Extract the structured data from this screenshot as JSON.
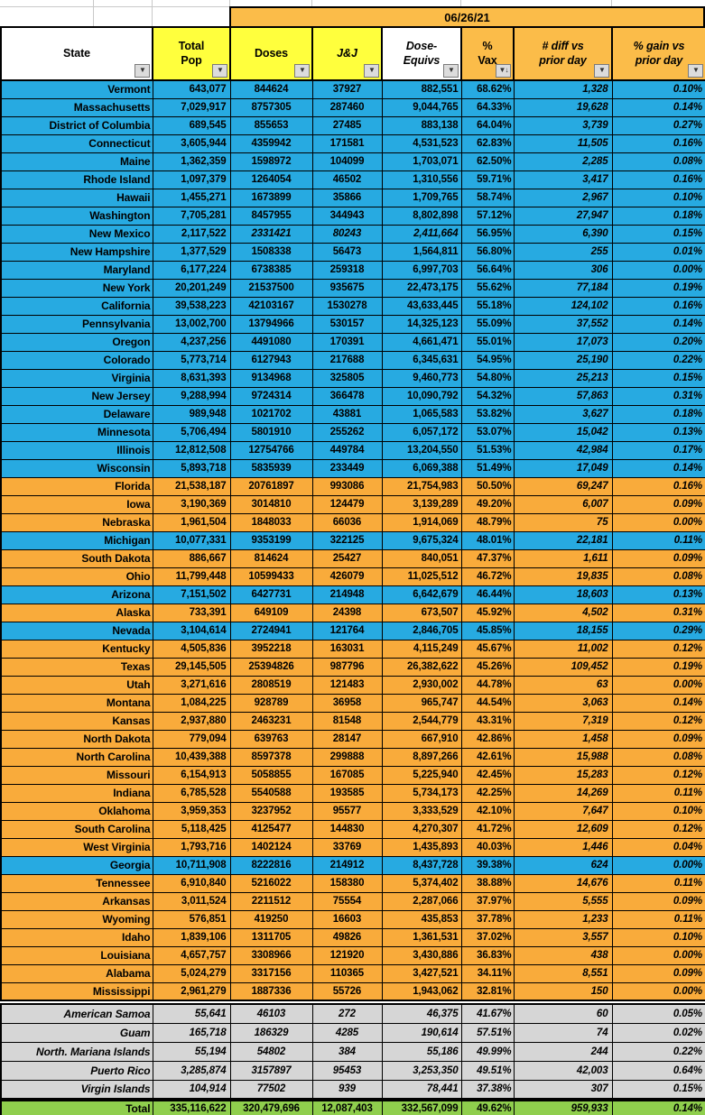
{
  "meta": {
    "date": "06/26/21"
  },
  "palette": {
    "row_blue": "#27AAE1",
    "row_orange": "#F9AB3B",
    "header_orange": "#FBBC49",
    "header_yellow": "#FFFF3D",
    "territory_gray": "#D6D6D6",
    "total_green": "#8FCE4D"
  },
  "icons": {
    "filter": "▼",
    "filter_sorted_desc": "▼↓"
  },
  "columns": [
    {
      "label": "State"
    },
    {
      "label": "Total Pop"
    },
    {
      "label": "Doses"
    },
    {
      "label": "J&J"
    },
    {
      "label": "Dose-Equivs"
    },
    {
      "label": "% Vax"
    },
    {
      "label": "# diff vs prior day"
    },
    {
      "label": "% gain vs prior day"
    }
  ],
  "states": [
    [
      "Vermont",
      "643,077",
      "844624",
      "37927",
      "882,551",
      "68.62%",
      "1,328",
      "0.10%",
      "blue"
    ],
    [
      "Massachusetts",
      "7,029,917",
      "8757305",
      "287460",
      "9,044,765",
      "64.33%",
      "19,628",
      "0.14%",
      "blue"
    ],
    [
      "District of Columbia",
      "689,545",
      "855653",
      "27485",
      "883,138",
      "64.04%",
      "3,739",
      "0.27%",
      "blue"
    ],
    [
      "Connecticut",
      "3,605,944",
      "4359942",
      "171581",
      "4,531,523",
      "62.83%",
      "11,505",
      "0.16%",
      "blue"
    ],
    [
      "Maine",
      "1,362,359",
      "1598972",
      "104099",
      "1,703,071",
      "62.50%",
      "2,285",
      "0.08%",
      "blue"
    ],
    [
      "Rhode Island",
      "1,097,379",
      "1264054",
      "46502",
      "1,310,556",
      "59.71%",
      "3,417",
      "0.16%",
      "blue"
    ],
    [
      "Hawaii",
      "1,455,271",
      "1673899",
      "35866",
      "1,709,765",
      "58.74%",
      "2,967",
      "0.10%",
      "blue"
    ],
    [
      "Washington",
      "7,705,281",
      "8457955",
      "344943",
      "8,802,898",
      "57.12%",
      "27,947",
      "0.18%",
      "blue"
    ],
    [
      "New Mexico",
      "2,117,522",
      "2331421",
      "80243",
      "2,411,664",
      "56.95%",
      "6,390",
      "0.15%",
      "blue",
      "est"
    ],
    [
      "New Hampshire",
      "1,377,529",
      "1508338",
      "56473",
      "1,564,811",
      "56.80%",
      "255",
      "0.01%",
      "blue"
    ],
    [
      "Maryland",
      "6,177,224",
      "6738385",
      "259318",
      "6,997,703",
      "56.64%",
      "306",
      "0.00%",
      "blue"
    ],
    [
      "New York",
      "20,201,249",
      "21537500",
      "935675",
      "22,473,175",
      "55.62%",
      "77,184",
      "0.19%",
      "blue"
    ],
    [
      "California",
      "39,538,223",
      "42103167",
      "1530278",
      "43,633,445",
      "55.18%",
      "124,102",
      "0.16%",
      "blue"
    ],
    [
      "Pennsylvania",
      "13,002,700",
      "13794966",
      "530157",
      "14,325,123",
      "55.09%",
      "37,552",
      "0.14%",
      "blue"
    ],
    [
      "Oregon",
      "4,237,256",
      "4491080",
      "170391",
      "4,661,471",
      "55.01%",
      "17,073",
      "0.20%",
      "blue"
    ],
    [
      "Colorado",
      "5,773,714",
      "6127943",
      "217688",
      "6,345,631",
      "54.95%",
      "25,190",
      "0.22%",
      "blue"
    ],
    [
      "Virginia",
      "8,631,393",
      "9134968",
      "325805",
      "9,460,773",
      "54.80%",
      "25,213",
      "0.15%",
      "blue"
    ],
    [
      "New Jersey",
      "9,288,994",
      "9724314",
      "366478",
      "10,090,792",
      "54.32%",
      "57,863",
      "0.31%",
      "blue"
    ],
    [
      "Delaware",
      "989,948",
      "1021702",
      "43881",
      "1,065,583",
      "53.82%",
      "3,627",
      "0.18%",
      "blue"
    ],
    [
      "Minnesota",
      "5,706,494",
      "5801910",
      "255262",
      "6,057,172",
      "53.07%",
      "15,042",
      "0.13%",
      "blue"
    ],
    [
      "Illinois",
      "12,812,508",
      "12754766",
      "449784",
      "13,204,550",
      "51.53%",
      "42,984",
      "0.17%",
      "blue"
    ],
    [
      "Wisconsin",
      "5,893,718",
      "5835939",
      "233449",
      "6,069,388",
      "51.49%",
      "17,049",
      "0.14%",
      "blue"
    ],
    [
      "Florida",
      "21,538,187",
      "20761897",
      "993086",
      "21,754,983",
      "50.50%",
      "69,247",
      "0.16%",
      "orange"
    ],
    [
      "Iowa",
      "3,190,369",
      "3014810",
      "124479",
      "3,139,289",
      "49.20%",
      "6,007",
      "0.09%",
      "orange"
    ],
    [
      "Nebraska",
      "1,961,504",
      "1848033",
      "66036",
      "1,914,069",
      "48.79%",
      "75",
      "0.00%",
      "orange"
    ],
    [
      "Michigan",
      "10,077,331",
      "9353199",
      "322125",
      "9,675,324",
      "48.01%",
      "22,181",
      "0.11%",
      "blue"
    ],
    [
      "South Dakota",
      "886,667",
      "814624",
      "25427",
      "840,051",
      "47.37%",
      "1,611",
      "0.09%",
      "orange"
    ],
    [
      "Ohio",
      "11,799,448",
      "10599433",
      "426079",
      "11,025,512",
      "46.72%",
      "19,835",
      "0.08%",
      "orange"
    ],
    [
      "Arizona",
      "7,151,502",
      "6427731",
      "214948",
      "6,642,679",
      "46.44%",
      "18,603",
      "0.13%",
      "blue"
    ],
    [
      "Alaska",
      "733,391",
      "649109",
      "24398",
      "673,507",
      "45.92%",
      "4,502",
      "0.31%",
      "orange"
    ],
    [
      "Nevada",
      "3,104,614",
      "2724941",
      "121764",
      "2,846,705",
      "45.85%",
      "18,155",
      "0.29%",
      "blue"
    ],
    [
      "Kentucky",
      "4,505,836",
      "3952218",
      "163031",
      "4,115,249",
      "45.67%",
      "11,002",
      "0.12%",
      "orange"
    ],
    [
      "Texas",
      "29,145,505",
      "25394826",
      "987796",
      "26,382,622",
      "45.26%",
      "109,452",
      "0.19%",
      "orange"
    ],
    [
      "Utah",
      "3,271,616",
      "2808519",
      "121483",
      "2,930,002",
      "44.78%",
      "63",
      "0.00%",
      "orange"
    ],
    [
      "Montana",
      "1,084,225",
      "928789",
      "36958",
      "965,747",
      "44.54%",
      "3,063",
      "0.14%",
      "orange"
    ],
    [
      "Kansas",
      "2,937,880",
      "2463231",
      "81548",
      "2,544,779",
      "43.31%",
      "7,319",
      "0.12%",
      "orange"
    ],
    [
      "North Dakota",
      "779,094",
      "639763",
      "28147",
      "667,910",
      "42.86%",
      "1,458",
      "0.09%",
      "orange"
    ],
    [
      "North Carolina",
      "10,439,388",
      "8597378",
      "299888",
      "8,897,266",
      "42.61%",
      "15,988",
      "0.08%",
      "orange"
    ],
    [
      "Missouri",
      "6,154,913",
      "5058855",
      "167085",
      "5,225,940",
      "42.45%",
      "15,283",
      "0.12%",
      "orange"
    ],
    [
      "Indiana",
      "6,785,528",
      "5540588",
      "193585",
      "5,734,173",
      "42.25%",
      "14,269",
      "0.11%",
      "orange"
    ],
    [
      "Oklahoma",
      "3,959,353",
      "3237952",
      "95577",
      "3,333,529",
      "42.10%",
      "7,647",
      "0.10%",
      "orange"
    ],
    [
      "South Carolina",
      "5,118,425",
      "4125477",
      "144830",
      "4,270,307",
      "41.72%",
      "12,609",
      "0.12%",
      "orange"
    ],
    [
      "West Virginia",
      "1,793,716",
      "1402124",
      "33769",
      "1,435,893",
      "40.03%",
      "1,446",
      "0.04%",
      "orange"
    ],
    [
      "Georgia",
      "10,711,908",
      "8222816",
      "214912",
      "8,437,728",
      "39.38%",
      "624",
      "0.00%",
      "blue"
    ],
    [
      "Tennessee",
      "6,910,840",
      "5216022",
      "158380",
      "5,374,402",
      "38.88%",
      "14,676",
      "0.11%",
      "orange"
    ],
    [
      "Arkansas",
      "3,011,524",
      "2211512",
      "75554",
      "2,287,066",
      "37.97%",
      "5,555",
      "0.09%",
      "orange"
    ],
    [
      "Wyoming",
      "576,851",
      "419250",
      "16603",
      "435,853",
      "37.78%",
      "1,233",
      "0.11%",
      "orange"
    ],
    [
      "Idaho",
      "1,839,106",
      "1311705",
      "49826",
      "1,361,531",
      "37.02%",
      "3,557",
      "0.10%",
      "orange"
    ],
    [
      "Louisiana",
      "4,657,757",
      "3308966",
      "121920",
      "3,430,886",
      "36.83%",
      "438",
      "0.00%",
      "orange"
    ],
    [
      "Alabama",
      "5,024,279",
      "3317156",
      "110365",
      "3,427,521",
      "34.11%",
      "8,551",
      "0.09%",
      "orange"
    ],
    [
      "Mississippi",
      "2,961,279",
      "1887336",
      "55726",
      "1,943,062",
      "32.81%",
      "150",
      "0.00%",
      "orange"
    ]
  ],
  "territories": [
    [
      "American Samoa",
      "55,641",
      "46103",
      "272",
      "46,375",
      "41.67%",
      "60",
      "0.05%"
    ],
    [
      "Guam",
      "165,718",
      "186329",
      "4285",
      "190,614",
      "57.51%",
      "74",
      "0.02%"
    ],
    [
      "North. Mariana Islands",
      "55,194",
      "54802",
      "384",
      "55,186",
      "49.99%",
      "244",
      "0.22%"
    ],
    [
      "Puerto Rico",
      "3,285,874",
      "3157897",
      "95453",
      "3,253,350",
      "49.51%",
      "42,003",
      "0.64%"
    ],
    [
      "Virgin Islands",
      "104,914",
      "77502",
      "939",
      "78,441",
      "37.38%",
      "307",
      "0.15%"
    ]
  ],
  "total_row": [
    "Total",
    "335,116,622",
    "320,479,696",
    "12,087,403",
    "332,567,099",
    "49.62%",
    "959,933",
    "0.14%"
  ]
}
